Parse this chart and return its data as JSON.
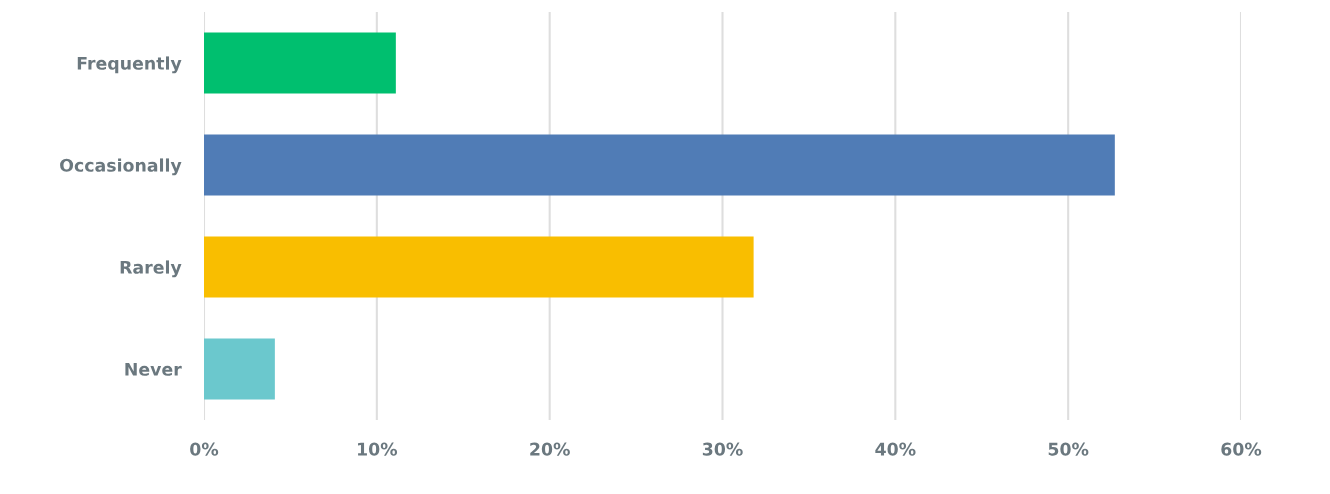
{
  "chart_data": {
    "type": "bar",
    "orientation": "horizontal",
    "categories": [
      "Frequently",
      "Occasionally",
      "Rarely",
      "Never"
    ],
    "values": [
      11.1,
      52.7,
      31.8,
      4.1
    ],
    "colors": [
      "#00bf6f",
      "#507cb6",
      "#f9be00",
      "#6bc8cd"
    ],
    "xlim": [
      0,
      60
    ],
    "xticks": [
      {
        "value": 0,
        "label": "0%"
      },
      {
        "value": 10,
        "label": "10%"
      },
      {
        "value": 20,
        "label": "20%"
      },
      {
        "value": 30,
        "label": "30%"
      },
      {
        "value": 40,
        "label": "40%"
      },
      {
        "value": 50,
        "label": "50%"
      },
      {
        "value": 60,
        "label": "60%"
      }
    ],
    "grid": "x"
  }
}
